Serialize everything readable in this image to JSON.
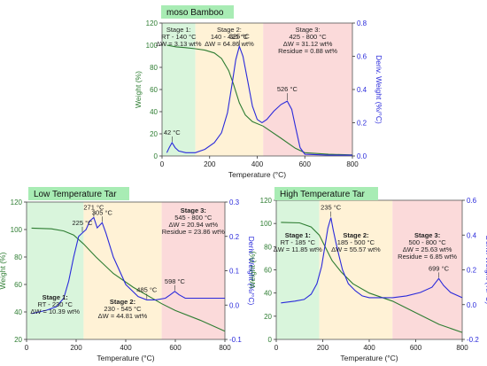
{
  "chart_data": [
    {
      "type": "line",
      "title": "moso Bamboo",
      "xlabel": "Temperature (°C)",
      "ylabel_left": "Weight (%)",
      "ylabel_right": "Deriv. Weight (%/°C)",
      "xlim": [
        0,
        800
      ],
      "ylim_left": [
        0,
        120
      ],
      "ylim_right": [
        0,
        0.8
      ],
      "x_ticks": [
        "0",
        "200",
        "400",
        "600",
        "800"
      ],
      "y_left_ticks": [
        "0",
        "20",
        "40",
        "60",
        "80",
        "100",
        "120"
      ],
      "y_right_ticks": [
        "0.0",
        "0.2",
        "0.4",
        "0.6",
        "0.8"
      ],
      "colors": {
        "weight": "#2e7d32",
        "deriv": "#2a2adb",
        "stage1": "#d9f5dc",
        "stage2": "#fff2d6",
        "stage3": "#fbdada",
        "title_bg": "#a8ecb4"
      },
      "stages": [
        {
          "label": "Stage 1:",
          "range": "RT - 140 °C",
          "dw": "ΔW = 3.13 wt%",
          "residue": "",
          "x_from": 0,
          "x_to": 140
        },
        {
          "label": "Stage 2:",
          "range": "140 - 425 °C",
          "dw": "ΔW = 64.86 wt%",
          "residue": "",
          "x_from": 140,
          "x_to": 425
        },
        {
          "label": "Stage 3:",
          "range": "425 - 800 °C",
          "dw": "ΔW = 31.12 wt%",
          "residue": "Residue = 0.88 wt%",
          "x_from": 425,
          "x_to": 800
        }
      ],
      "series": [
        {
          "axis": "left",
          "x": [
            20,
            60,
            100,
            140,
            180,
            220,
            250,
            280,
            300,
            325,
            350,
            380,
            425,
            500,
            560,
            600,
            700,
            800
          ],
          "y": [
            100,
            98.5,
            97.8,
            96.8,
            95.5,
            93,
            88,
            77,
            65,
            48,
            37,
            31,
            27,
            16,
            7,
            3,
            1.5,
            1
          ]
        },
        {
          "axis": "right",
          "x": [
            20,
            30,
            42,
            55,
            70,
            100,
            140,
            180,
            220,
            250,
            275,
            295,
            310,
            325,
            340,
            360,
            380,
            400,
            420,
            440,
            470,
            500,
            526,
            545,
            560,
            580,
            600,
            700,
            800
          ],
          "y": [
            0.02,
            0.05,
            0.08,
            0.05,
            0.03,
            0.02,
            0.02,
            0.04,
            0.08,
            0.14,
            0.26,
            0.44,
            0.58,
            0.66,
            0.6,
            0.45,
            0.3,
            0.22,
            0.2,
            0.22,
            0.27,
            0.31,
            0.33,
            0.28,
            0.18,
            0.05,
            0.01,
            0.005,
            0.005
          ]
        }
      ],
      "annotations": [
        {
          "text": "42 °C",
          "x": 42,
          "y": 0.08
        },
        {
          "text": "325 °C",
          "x": 325,
          "y": 0.66
        },
        {
          "text": "526 °C",
          "x": 526,
          "y": 0.33
        }
      ]
    },
    {
      "type": "line",
      "title": "Low Temperature Tar",
      "xlabel": "Temperature (°C)",
      "ylabel_left": "Weight (%)",
      "ylabel_right": "Deriv. Weight (%/°C)",
      "xlim": [
        0,
        800
      ],
      "ylim_left": [
        20,
        120
      ],
      "ylim_right": [
        -0.1,
        0.3
      ],
      "x_ticks": [
        "0",
        "200",
        "400",
        "600",
        "800"
      ],
      "y_left_ticks": [
        "20",
        "40",
        "60",
        "80",
        "100",
        "120"
      ],
      "y_right_ticks": [
        "-0.1",
        "0.0",
        "0.1",
        "0.2",
        "0.3"
      ],
      "colors": {
        "weight": "#2e7d32",
        "deriv": "#2a2adb",
        "stage1": "#d9f5dc",
        "stage2": "#fff2d6",
        "stage3": "#fbdada",
        "title_bg": "#a8ecb4"
      },
      "stages": [
        {
          "label": "Stage 1:",
          "range": "RT - 230 °C",
          "dw": "ΔW = 10.39 wt%",
          "residue": "",
          "x_from": 0,
          "x_to": 230
        },
        {
          "label": "Stage 2:",
          "range": "230 - 545 °C",
          "dw": "ΔW = 44.81 wt%",
          "residue": "",
          "x_from": 230,
          "x_to": 545
        },
        {
          "label": "Stage 3:",
          "range": "545 - 800 °C",
          "dw": "ΔW = 20.94 wt%",
          "residue": "Residue = 23.86 wt%",
          "x_from": 545,
          "x_to": 800
        }
      ],
      "series": [
        {
          "axis": "left",
          "x": [
            20,
            100,
            150,
            190,
            230,
            280,
            350,
            430,
            545,
            600,
            700,
            800
          ],
          "y": [
            101,
            100.5,
            99,
            96,
            89.5,
            80,
            68,
            58,
            46,
            41,
            34,
            26
          ]
        },
        {
          "axis": "right",
          "x": [
            20,
            80,
            120,
            150,
            170,
            190,
            210,
            225,
            240,
            255,
            271,
            285,
            305,
            320,
            350,
            400,
            450,
            485,
            520,
            560,
            580,
            598,
            615,
            640,
            700,
            800
          ],
          "y": [
            -0.025,
            -0.015,
            -0.005,
            0.02,
            0.07,
            0.14,
            0.2,
            0.21,
            0.22,
            0.245,
            0.255,
            0.225,
            0.24,
            0.21,
            0.14,
            0.06,
            0.025,
            0.015,
            0.015,
            0.02,
            0.03,
            0.04,
            0.03,
            0.02,
            0.02,
            0.02
          ]
        }
      ],
      "annotations": [
        {
          "text": "225 °C",
          "x": 225,
          "y": 0.21
        },
        {
          "text": "271 °C",
          "x": 271,
          "y": 0.255
        },
        {
          "text": "305 °C",
          "x": 305,
          "y": 0.24
        },
        {
          "text": "485 °C",
          "x": 485,
          "y": 0.015
        },
        {
          "text": "598 °C",
          "x": 598,
          "y": 0.04
        }
      ]
    },
    {
      "type": "line",
      "title": "High Temperature Tar",
      "xlabel": "Temperature (°C)",
      "ylabel_left": "Weight (%)",
      "ylabel_right": "Deriv. Weight (%/°C)",
      "xlim": [
        0,
        800
      ],
      "ylim_left": [
        0,
        120
      ],
      "ylim_right": [
        -0.2,
        0.6
      ],
      "x_ticks": [
        "0",
        "200",
        "400",
        "600",
        "800"
      ],
      "y_left_ticks": [
        "0",
        "20",
        "40",
        "60",
        "80",
        "100",
        "120"
      ],
      "y_right_ticks": [
        "-0.2",
        "0.0",
        "0.2",
        "0.4",
        "0.6"
      ],
      "colors": {
        "weight": "#2e7d32",
        "deriv": "#2a2adb",
        "stage1": "#d9f5dc",
        "stage2": "#fff2d6",
        "stage3": "#fbdada",
        "title_bg": "#a8ecb4"
      },
      "stages": [
        {
          "label": "Stage 1:",
          "range": "RT - 185 °C",
          "dw": "ΔW = 11.85 wt%",
          "residue": "",
          "x_from": 0,
          "x_to": 185
        },
        {
          "label": "Stage 2:",
          "range": "185 - 500 °C",
          "dw": "ΔW = 55.57 wt%",
          "residue": "",
          "x_from": 185,
          "x_to": 500
        },
        {
          "label": "Stage 3:",
          "range": "500 - 800 °C",
          "dw": "ΔW = 25.63 wt%",
          "residue": "Residue = 6.85 wt%",
          "x_from": 500,
          "x_to": 800
        }
      ],
      "series": [
        {
          "axis": "left",
          "x": [
            20,
            100,
            150,
            185,
            210,
            240,
            280,
            330,
            400,
            500,
            600,
            700,
            800
          ],
          "y": [
            101,
            100.5,
            97,
            90,
            80,
            68,
            58,
            48,
            40,
            33,
            23,
            13,
            6
          ]
        },
        {
          "axis": "right",
          "x": [
            20,
            80,
            120,
            150,
            175,
            195,
            210,
            222,
            235,
            245,
            258,
            270,
            285,
            310,
            340,
            370,
            400,
            450,
            500,
            560,
            620,
            670,
            699,
            720,
            750,
            800
          ],
          "y": [
            0.01,
            0.02,
            0.03,
            0.06,
            0.12,
            0.22,
            0.34,
            0.44,
            0.5,
            0.43,
            0.35,
            0.28,
            0.2,
            0.12,
            0.08,
            0.05,
            0.04,
            0.04,
            0.04,
            0.05,
            0.07,
            0.1,
            0.15,
            0.11,
            0.07,
            0.04
          ]
        }
      ],
      "annotations": [
        {
          "text": "235 °C",
          "x": 235,
          "y": 0.5
        },
        {
          "text": "699 °C",
          "x": 699,
          "y": 0.15
        }
      ]
    }
  ]
}
